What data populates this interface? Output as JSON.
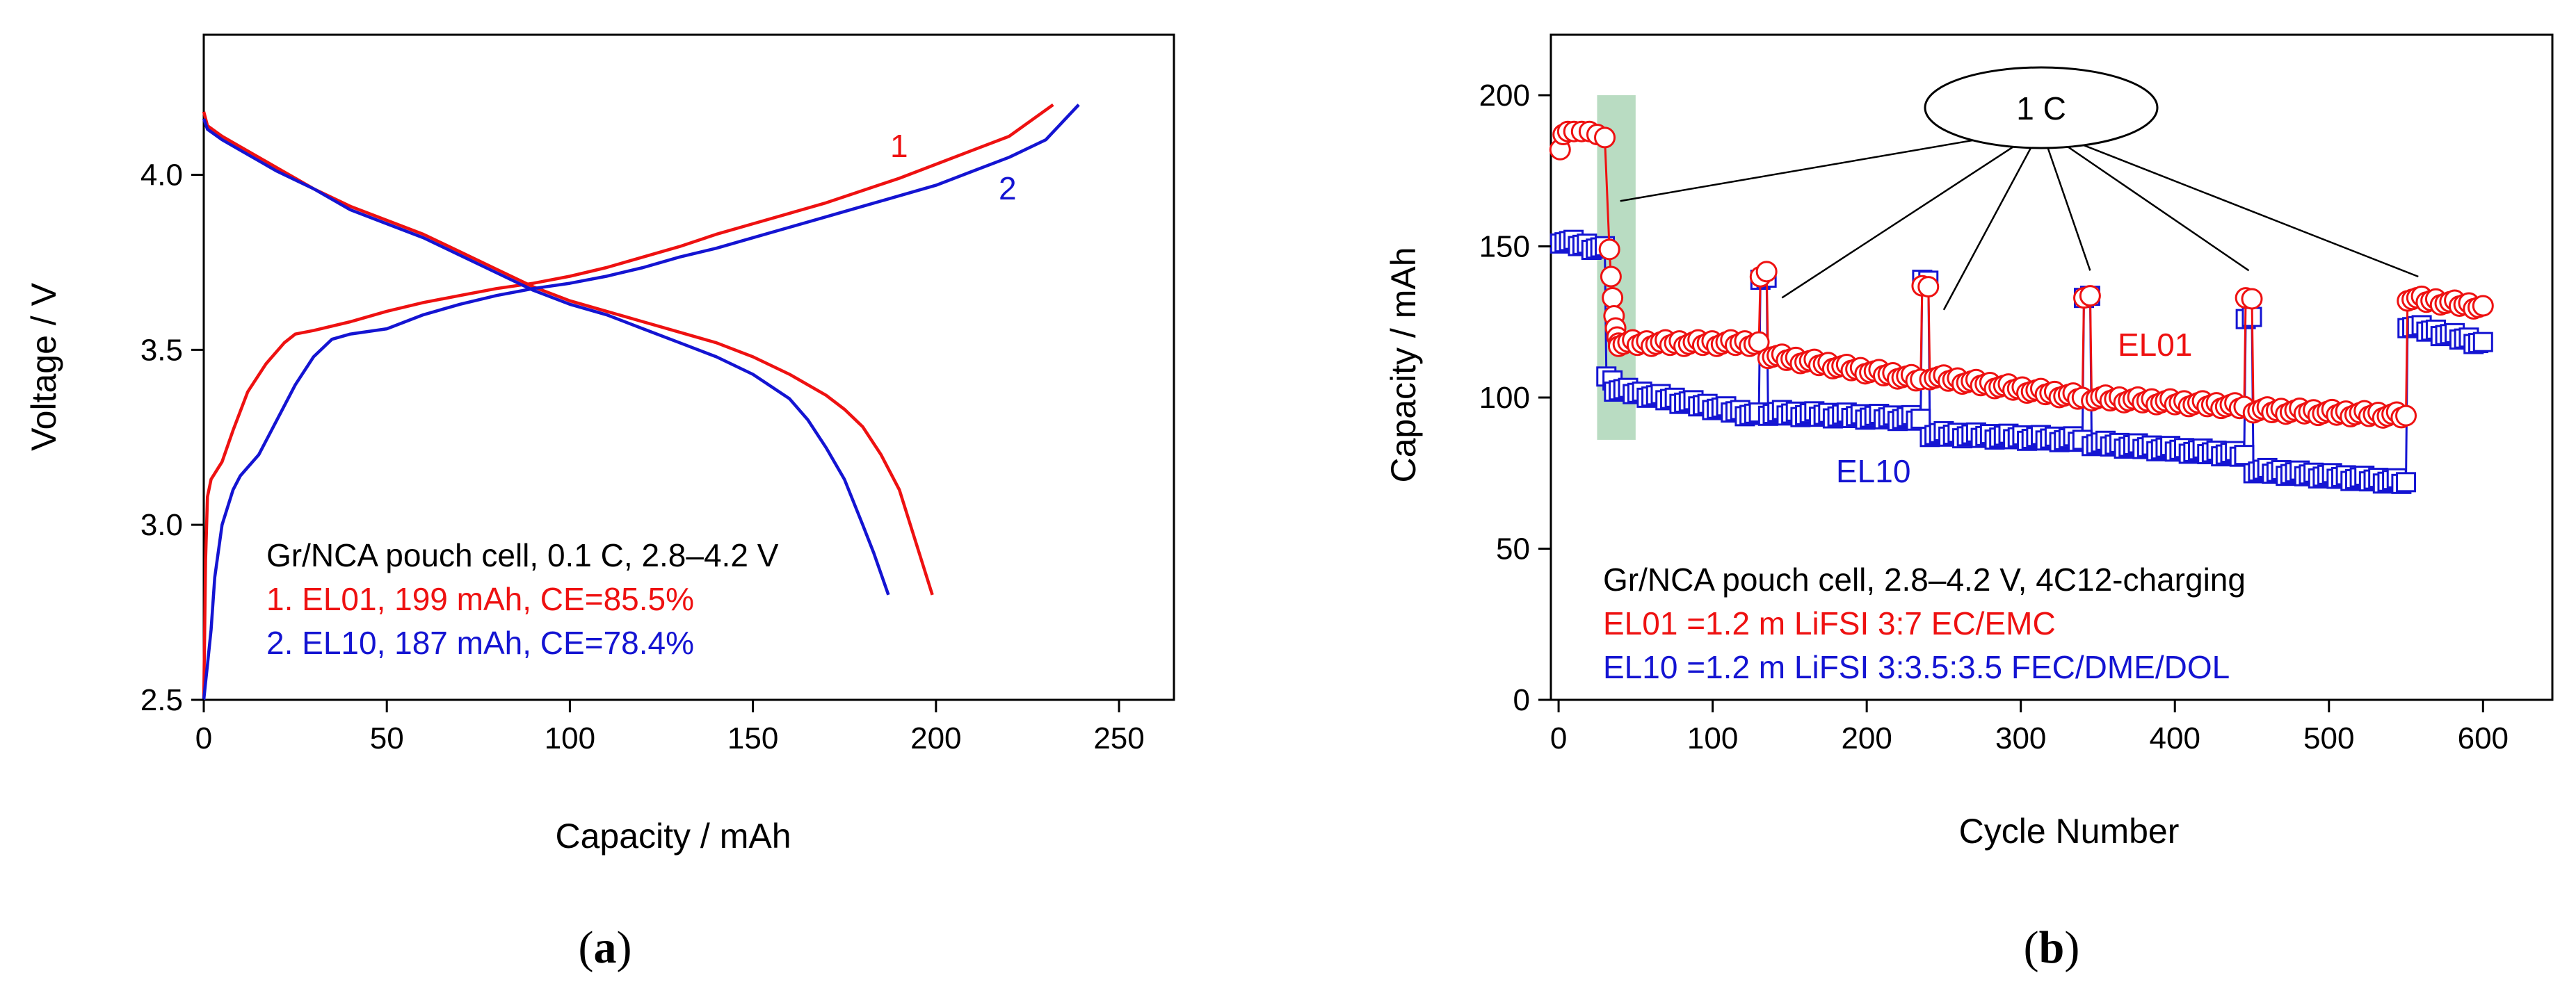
{
  "colors": {
    "red": "#ee1111",
    "blue": "#1414d2",
    "black": "#000000",
    "highlight": "#b9dcc2"
  },
  "chart_data": [
    {
      "type": "line",
      "panel_label": "a",
      "xlabel": "Capacity / mAh",
      "ylabel": "Voltage / V",
      "xlim": [
        0,
        265
      ],
      "ylim": [
        2.5,
        4.4
      ],
      "xticks": [
        0,
        50,
        100,
        150,
        200,
        250
      ],
      "yticks": [
        2.5,
        3.0,
        3.5,
        4.0
      ],
      "xtick_labels": [
        "0",
        "50",
        "100",
        "150",
        "200",
        "250"
      ],
      "ytick_labels": [
        "2.5",
        "3.0",
        "3.5",
        "4.0"
      ],
      "annotations": {
        "line1": "Gr/NCA pouch cell, 0.1 C, 2.8–4.2 V",
        "line2": "1. EL01, 199 mAh, CE=85.5%",
        "line3": "2. EL10, 187 mAh, CE=78.4%",
        "curve1_label": "1",
        "curve2_label": "2"
      },
      "series": [
        {
          "name": "1 charge (EL01)",
          "color": "red",
          "x": [
            0,
            0.5,
            1,
            2,
            5,
            8,
            12,
            17,
            22,
            25,
            30,
            40,
            50,
            60,
            70,
            80,
            90,
            100,
            110,
            120,
            130,
            140,
            150,
            160,
            170,
            180,
            190,
            200,
            210,
            220,
            232
          ],
          "y": [
            2.5,
            2.9,
            3.08,
            3.13,
            3.18,
            3.27,
            3.38,
            3.46,
            3.52,
            3.545,
            3.555,
            3.58,
            3.61,
            3.635,
            3.655,
            3.675,
            3.69,
            3.71,
            3.735,
            3.765,
            3.795,
            3.83,
            3.86,
            3.89,
            3.92,
            3.955,
            3.99,
            4.03,
            4.07,
            4.11,
            4.2
          ]
        },
        {
          "name": "1 discharge (EL01)",
          "color": "red",
          "x": [
            0,
            1,
            5,
            10,
            20,
            30,
            40,
            50,
            60,
            70,
            80,
            90,
            100,
            110,
            120,
            130,
            140,
            150,
            160,
            170,
            175,
            180,
            185,
            190,
            193,
            196,
            199
          ],
          "y": [
            4.18,
            4.14,
            4.11,
            4.08,
            4.02,
            3.96,
            3.91,
            3.87,
            3.83,
            3.78,
            3.73,
            3.68,
            3.64,
            3.61,
            3.58,
            3.55,
            3.52,
            3.48,
            3.43,
            3.37,
            3.33,
            3.28,
            3.2,
            3.1,
            3.0,
            2.9,
            2.8
          ]
        },
        {
          "name": "2 charge (EL10)",
          "color": "blue",
          "x": [
            0,
            0.5,
            1,
            2,
            3,
            5,
            8,
            10,
            15,
            20,
            25,
            30,
            35,
            40,
            50,
            60,
            70,
            80,
            90,
            100,
            110,
            120,
            130,
            140,
            150,
            160,
            170,
            180,
            190,
            200,
            210,
            220,
            230,
            239
          ],
          "y": [
            2.5,
            2.55,
            2.6,
            2.7,
            2.85,
            3.0,
            3.1,
            3.14,
            3.2,
            3.3,
            3.4,
            3.48,
            3.53,
            3.545,
            3.56,
            3.6,
            3.63,
            3.655,
            3.675,
            3.69,
            3.71,
            3.735,
            3.765,
            3.79,
            3.82,
            3.85,
            3.88,
            3.91,
            3.94,
            3.97,
            4.01,
            4.05,
            4.1,
            4.2
          ]
        },
        {
          "name": "2 discharge (EL10)",
          "color": "blue",
          "x": [
            0,
            1,
            5,
            10,
            20,
            30,
            40,
            50,
            60,
            70,
            80,
            90,
            100,
            110,
            120,
            130,
            140,
            150,
            160,
            165,
            170,
            175,
            180,
            183,
            185,
            187
          ],
          "y": [
            4.16,
            4.13,
            4.1,
            4.07,
            4.01,
            3.96,
            3.9,
            3.86,
            3.82,
            3.77,
            3.72,
            3.67,
            3.63,
            3.6,
            3.56,
            3.52,
            3.48,
            3.43,
            3.36,
            3.3,
            3.22,
            3.13,
            3.0,
            2.92,
            2.86,
            2.8
          ]
        }
      ]
    },
    {
      "type": "scatter",
      "panel_label": "b",
      "xlabel": "Cycle Number",
      "ylabel": "Capacity / mAh",
      "xlim": [
        -5,
        645
      ],
      "ylim": [
        0,
        220
      ],
      "xticks": [
        0,
        100,
        200,
        300,
        400,
        500,
        600
      ],
      "yticks": [
        0,
        50,
        100,
        150,
        200
      ],
      "xtick_labels": [
        "0",
        "100",
        "200",
        "300",
        "400",
        "500",
        "600"
      ],
      "ytick_labels": [
        "0",
        "50",
        "100",
        "150",
        "200"
      ],
      "highlight_band": {
        "x": [
          25,
          50
        ],
        "y": [
          86,
          200
        ]
      },
      "callout_label": "1 C",
      "callout_targets": [
        [
          40,
          165
        ],
        [
          145,
          133
        ],
        [
          250,
          129
        ],
        [
          345,
          142
        ],
        [
          448,
          142
        ],
        [
          558,
          140
        ]
      ],
      "annotations": {
        "line1": "Gr/NCA pouch cell, 2.8–4.2 V, 4C12-charging",
        "line2": "EL01 =1.2 m LiFSI 3:7 EC/EMC",
        "line3": "EL10 =1.2 m LiFSI 3:3.5:3.5 FEC/DME/DOL",
        "el01_label": "EL01",
        "el10_label": "EL10"
      },
      "series": [
        {
          "name": "EL01",
          "marker": "circle",
          "color": "red",
          "segments": [
            {
              "x": [
                1,
                30
              ],
              "y": [
                182,
                186
              ],
              "special": [
                [
                  1,
                  182
                ],
                [
                  3,
                  187
                ],
                [
                  6,
                  188
                ],
                [
                  10,
                  188
                ],
                [
                  15,
                  188
                ],
                [
                  20,
                  188
                ],
                [
                  25,
                  187
                ],
                [
                  30,
                  186
                ]
              ]
            },
            {
              "x": [
                30,
                36
              ],
              "points": [
                [
                  33,
                  149
                ],
                [
                  34,
                  140
                ],
                [
                  35,
                  133
                ],
                [
                  36,
                  127
                ],
                [
                  37,
                  123
                ],
                [
                  38,
                  120
                ],
                [
                  39,
                  118
                ]
              ]
            },
            {
              "x": [
                39,
                130
              ],
              "y": [
                118,
                118
              ]
            },
            {
              "x": [
                131,
                135
              ],
              "y": [
                141,
                142
              ]
            },
            {
              "x": [
                136,
                235
              ],
              "y": [
                114,
                106
              ]
            },
            {
              "x": [
                236,
                240
              ],
              "y": [
                138,
                137
              ]
            },
            {
              "x": [
                241,
                340
              ],
              "y": [
                107,
                100
              ]
            },
            {
              "x": [
                341,
                345
              ],
              "y": [
                134,
                134
              ]
            },
            {
              "x": [
                346,
                445
              ],
              "y": [
                100,
                97
              ]
            },
            {
              "x": [
                446,
                450
              ],
              "y": [
                134,
                133
              ]
            },
            {
              "x": [
                451,
                550
              ],
              "y": [
                96,
                94
              ]
            },
            {
              "x": [
                551,
                600
              ],
              "y": [
                133,
                130
              ]
            }
          ]
        },
        {
          "name": "EL10",
          "marker": "square",
          "color": "blue",
          "segments": [
            {
              "x": [
                1,
                30
              ],
              "y": [
                152,
                149
              ]
            },
            {
              "x": [
                31,
                35
              ],
              "y": [
                108,
                106
              ]
            },
            {
              "x": [
                36,
                130
              ],
              "y": [
                103,
                94
              ]
            },
            {
              "x": [
                131,
                135
              ],
              "y": [
                140,
                140
              ]
            },
            {
              "x": [
                136,
                235
              ],
              "y": [
                95,
                93
              ]
            },
            {
              "x": [
                236,
                240
              ],
              "y": [
                140,
                139
              ]
            },
            {
              "x": [
                241,
                340
              ],
              "y": [
                88,
                86
              ]
            },
            {
              "x": [
                341,
                345
              ],
              "y": [
                134,
                134
              ]
            },
            {
              "x": [
                346,
                445
              ],
              "y": [
                85,
                81
              ]
            },
            {
              "x": [
                446,
                450
              ],
              "y": [
                127,
                127
              ]
            },
            {
              "x": [
                451,
                550
              ],
              "y": [
                76,
                72
              ]
            },
            {
              "x": [
                551,
                600
              ],
              "y": [
                124,
                118
              ]
            }
          ]
        }
      ]
    }
  ]
}
